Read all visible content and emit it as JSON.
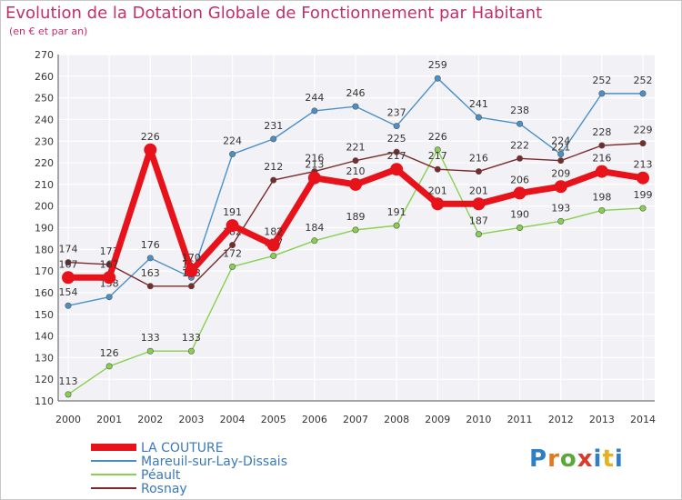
{
  "title": "Evolution de la Dotation Globale de Fonctionnement par Habitant",
  "subtitle": "(en € et par an)",
  "logo": "Proxiti",
  "chart_data": {
    "type": "line",
    "title": "Evolution de la Dotation Globale de Fonctionnement par Habitant",
    "subtitle": "(en € et par an)",
    "xlabel": "",
    "ylabel": "",
    "x": [
      "2000",
      "2001",
      "2002",
      "2003",
      "2004",
      "2005",
      "2006",
      "2007",
      "2008",
      "2009",
      "2010",
      "2011",
      "2012",
      "2013",
      "2014"
    ],
    "y_ticks": [
      110,
      120,
      130,
      140,
      150,
      160,
      170,
      180,
      190,
      200,
      210,
      220,
      230,
      240,
      250,
      260,
      270
    ],
    "ylim": [
      110,
      270
    ],
    "grid": true,
    "legend_position": "bottom-left",
    "series": [
      {
        "name": "Mareuil-sur-Lay-Dissais",
        "color": "#4a90c8",
        "values": [
          154,
          158,
          176,
          167,
          224,
          231,
          244,
          246,
          237,
          259,
          241,
          238,
          224,
          252,
          252
        ]
      },
      {
        "name": "Péault",
        "color": "#88d050",
        "values": [
          113,
          126,
          133,
          133,
          172,
          177,
          184,
          189,
          191,
          226,
          187,
          190,
          193,
          198,
          199
        ]
      },
      {
        "name": "Rosnay",
        "color": "#7a2a2a",
        "values": [
          174,
          173,
          163,
          163,
          182,
          212,
          216,
          221,
          225,
          217,
          216,
          222,
          221,
          228,
          229
        ]
      },
      {
        "name": "LA COUTURE",
        "color": "#e8121a",
        "values": [
          167,
          167,
          226,
          170,
          191,
          182,
          213,
          210,
          217,
          201,
          201,
          206,
          209,
          216,
          213
        ]
      }
    ]
  }
}
